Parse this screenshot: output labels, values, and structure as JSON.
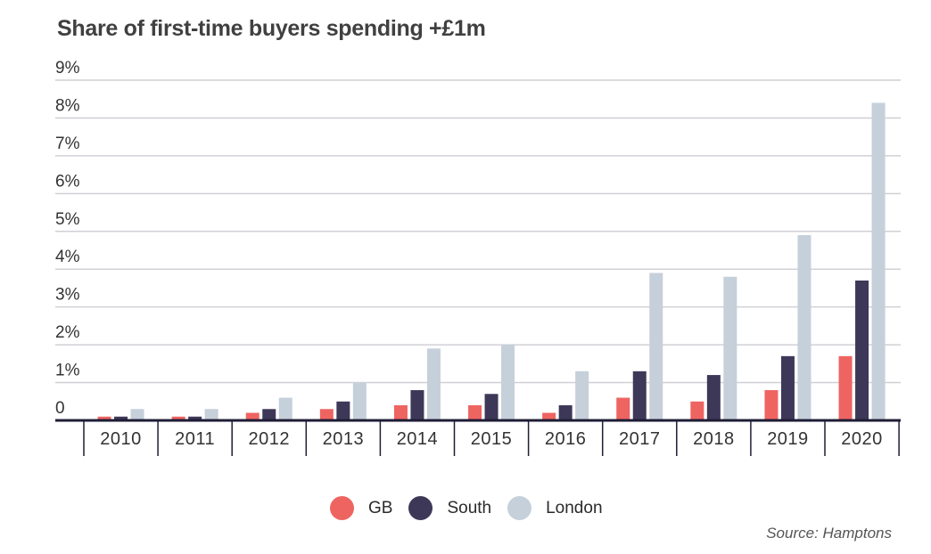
{
  "chart_data": {
    "type": "bar",
    "title": "Share of first-time buyers spending +£1m",
    "xlabel": "",
    "ylabel": "",
    "categories": [
      "2010",
      "2011",
      "2012",
      "2013",
      "2014",
      "2015",
      "2016",
      "2017",
      "2018",
      "2019",
      "2020"
    ],
    "series": [
      {
        "name": "GB",
        "color": "#ee6461",
        "values": [
          0.1,
          0.1,
          0.2,
          0.3,
          0.4,
          0.4,
          0.2,
          0.6,
          0.5,
          0.8,
          1.7
        ]
      },
      {
        "name": "South",
        "color": "#3d3858",
        "values": [
          0.1,
          0.1,
          0.3,
          0.5,
          0.8,
          0.7,
          0.4,
          1.3,
          1.2,
          1.7,
          3.7
        ]
      },
      {
        "name": "London",
        "color": "#c5d0da",
        "values": [
          0.3,
          0.3,
          0.6,
          1.0,
          1.9,
          2.0,
          1.3,
          3.9,
          3.8,
          4.9,
          8.4
        ]
      }
    ],
    "ylim": [
      0,
      9
    ],
    "yticks": [
      {
        "value": 0,
        "label": "0"
      },
      {
        "value": 1,
        "label": "1%"
      },
      {
        "value": 2,
        "label": "2%"
      },
      {
        "value": 3,
        "label": "3%"
      },
      {
        "value": 4,
        "label": "4%"
      },
      {
        "value": 5,
        "label": "5%"
      },
      {
        "value": 6,
        "label": "6%"
      },
      {
        "value": 7,
        "label": "7%"
      },
      {
        "value": 8,
        "label": "8%"
      },
      {
        "value": 9,
        "label": "9%"
      }
    ],
    "grid": true,
    "legend_position": "bottom-center",
    "source": "Source: Hamptons"
  }
}
